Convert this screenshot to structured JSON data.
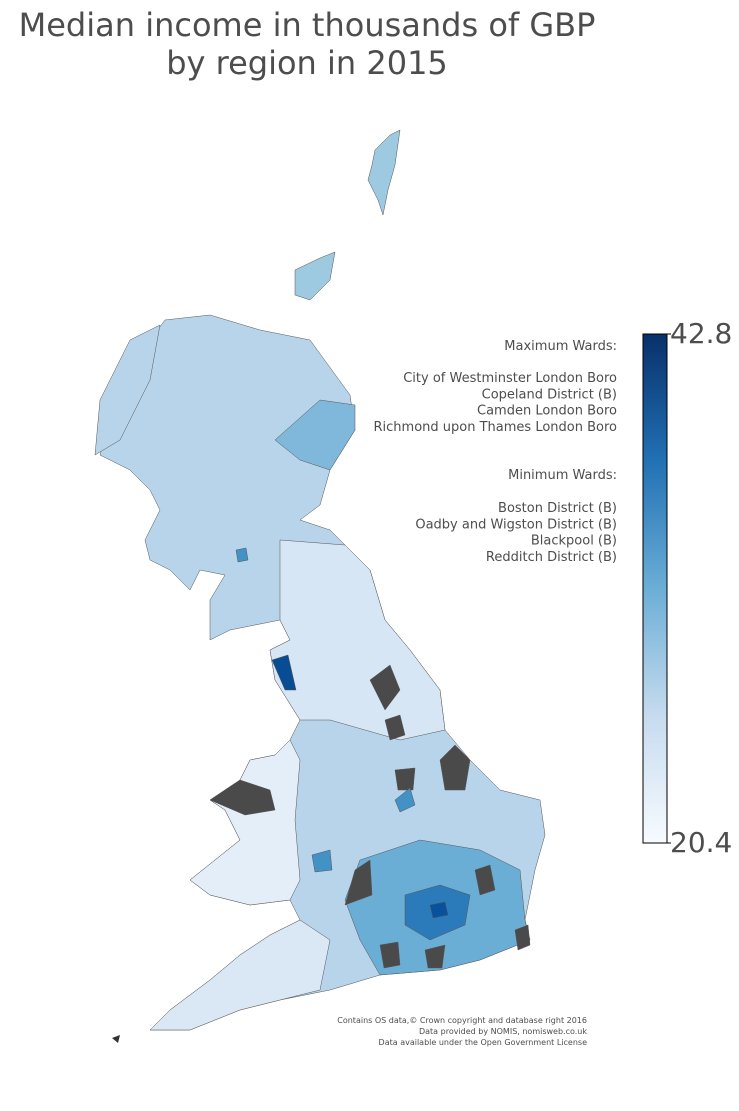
{
  "chart_data": {
    "type": "choropleth",
    "title": [
      "Median income in thousands of GBP",
      "by region in 2015"
    ],
    "colorbar": {
      "lim": [
        20.4,
        42.8
      ],
      "ticks": [
        20.4,
        42.8
      ],
      "colors": [
        "#f7fbff",
        "#c6dbef",
        "#6baed6",
        "#2171b5",
        "#08306b"
      ]
    },
    "max_heading": "Maximum Wards:",
    "max_wards": [
      "City of Westminster London Boro",
      "Copeland District (B)",
      "Camden London Boro",
      "Richmond upon Thames London Boro"
    ],
    "min_heading": "Minimum Wards:",
    "min_wards": [
      "Boston District (B)",
      "Oadby and Wigston District (B)",
      "Blackpool (B)",
      "Redditch District (B)"
    ],
    "attribution": [
      "Contains OS data,© Crown copyright and database right 2016",
      "Data provided by NOMIS, nomisweb.co.uk",
      "Data available under the Open Government License"
    ]
  }
}
